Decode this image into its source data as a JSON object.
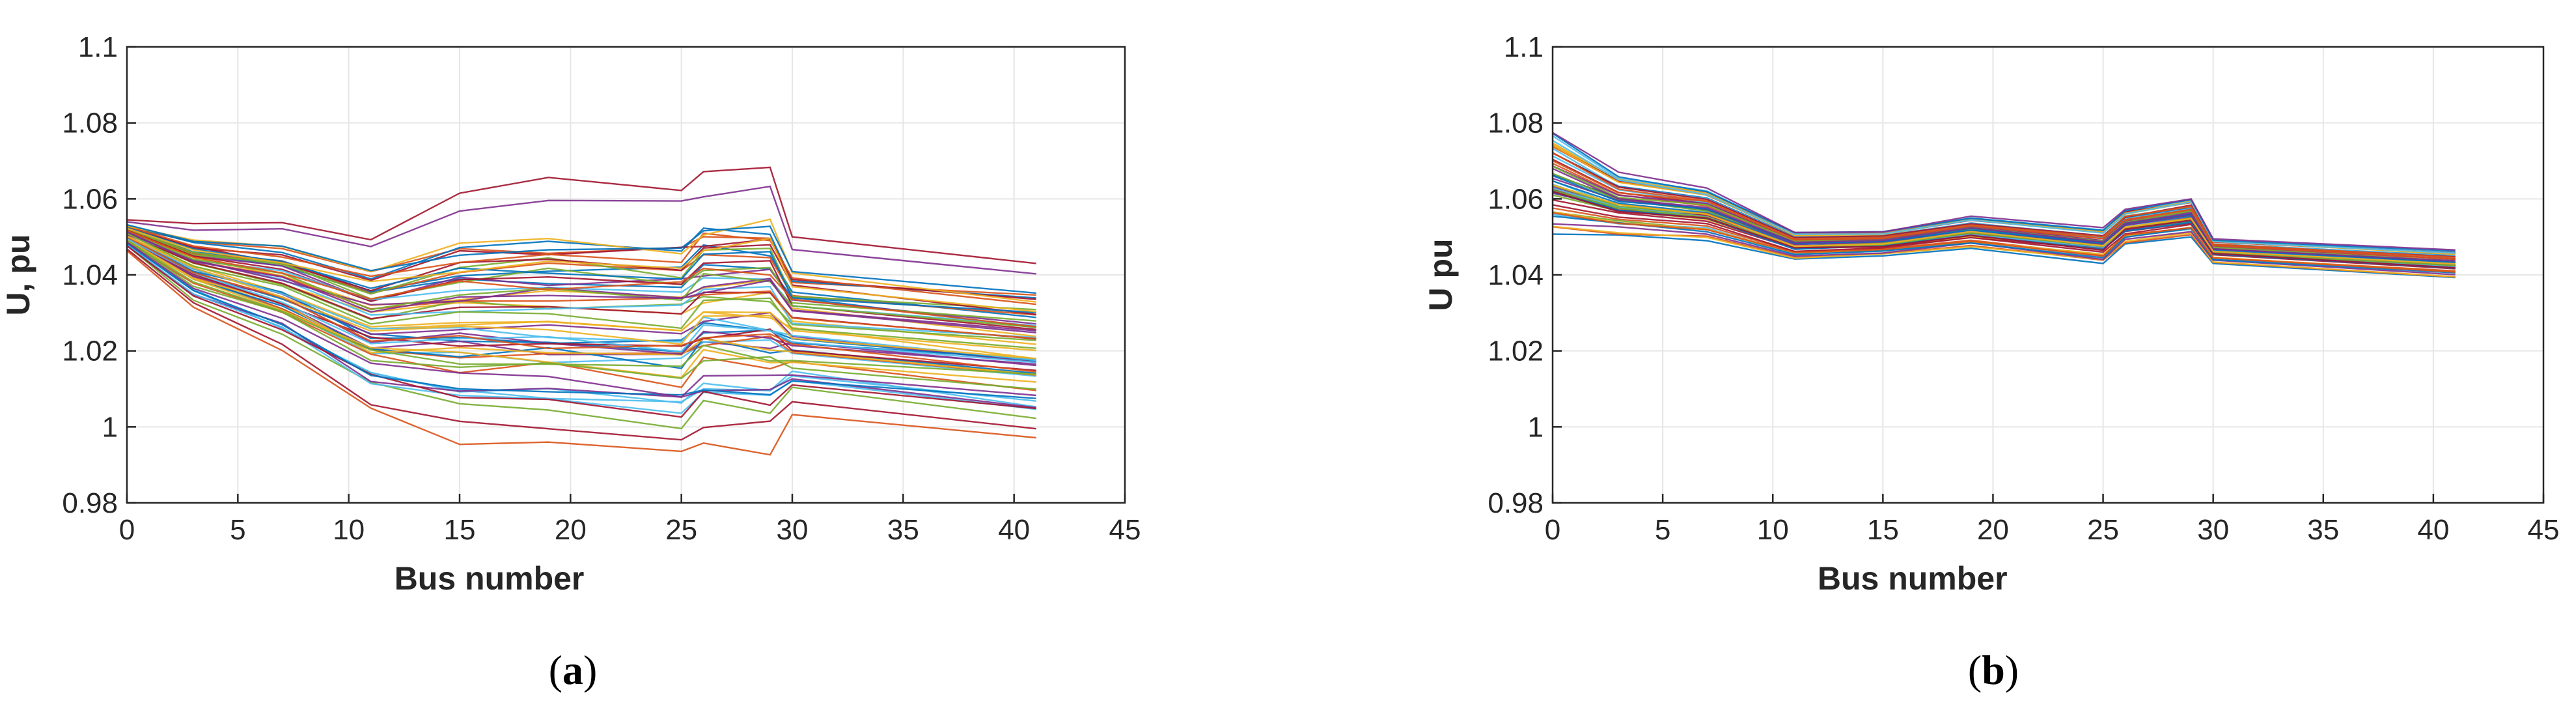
{
  "chart_data": [
    {
      "type": "line",
      "panel_label": "a",
      "xlabel": "Bus number",
      "ylabel": "U, pu",
      "xlim": [
        0,
        45
      ],
      "ylim": [
        0.98,
        1.1
      ],
      "xticks": [
        "0",
        "5",
        "10",
        "15",
        "20",
        "25",
        "30",
        "35",
        "40",
        "45"
      ],
      "yticks": [
        "0.98",
        "1",
        "1.02",
        "1.04",
        "1.06",
        "1.08",
        "1.1"
      ],
      "grid": true,
      "series_count": 60,
      "series_colors": [
        "#0072BD",
        "#D95319",
        "#EDB120",
        "#7E2F8E",
        "#77AC30",
        "#4DBEEE",
        "#A2142F"
      ],
      "x": [
        0,
        3,
        7,
        11,
        15,
        19,
        25,
        26,
        29,
        30,
        41
      ],
      "envelope_lower": [
        1.046,
        1.03,
        1.018,
        1.002,
        0.994,
        0.991,
        0.988,
        0.993,
        0.991,
        1.001,
        0.994
      ],
      "envelope_upper": [
        1.055,
        1.054,
        1.055,
        1.052,
        1.062,
        1.066,
        1.065,
        1.069,
        1.071,
        1.051,
        1.046
      ]
    },
    {
      "type": "line",
      "panel_label": "b",
      "xlabel": "Bus number",
      "ylabel": "U pu",
      "xlim": [
        0,
        45
      ],
      "ylim": [
        0.98,
        1.1
      ],
      "xticks": [
        "0",
        "5",
        "10",
        "15",
        "20",
        "25",
        "30",
        "35",
        "40",
        "45"
      ],
      "yticks": [
        "0.98",
        "1",
        "1.02",
        "1.04",
        "1.06",
        "1.08",
        "1.1"
      ],
      "grid": true,
      "series_count": 60,
      "series_colors": [
        "#0072BD",
        "#D95319",
        "#EDB120",
        "#7E2F8E",
        "#77AC30",
        "#4DBEEE",
        "#A2142F"
      ],
      "x": [
        0,
        3,
        7,
        11,
        15,
        19,
        25,
        26,
        29,
        30,
        41
      ],
      "envelope_lower": [
        1.05,
        1.05,
        1.049,
        1.044,
        1.045,
        1.047,
        1.043,
        1.048,
        1.05,
        1.043,
        1.039
      ],
      "envelope_upper": [
        1.08,
        1.068,
        1.064,
        1.052,
        1.052,
        1.056,
        1.053,
        1.058,
        1.061,
        1.05,
        1.047
      ]
    }
  ],
  "captions": [
    "(a)",
    "(b)"
  ]
}
